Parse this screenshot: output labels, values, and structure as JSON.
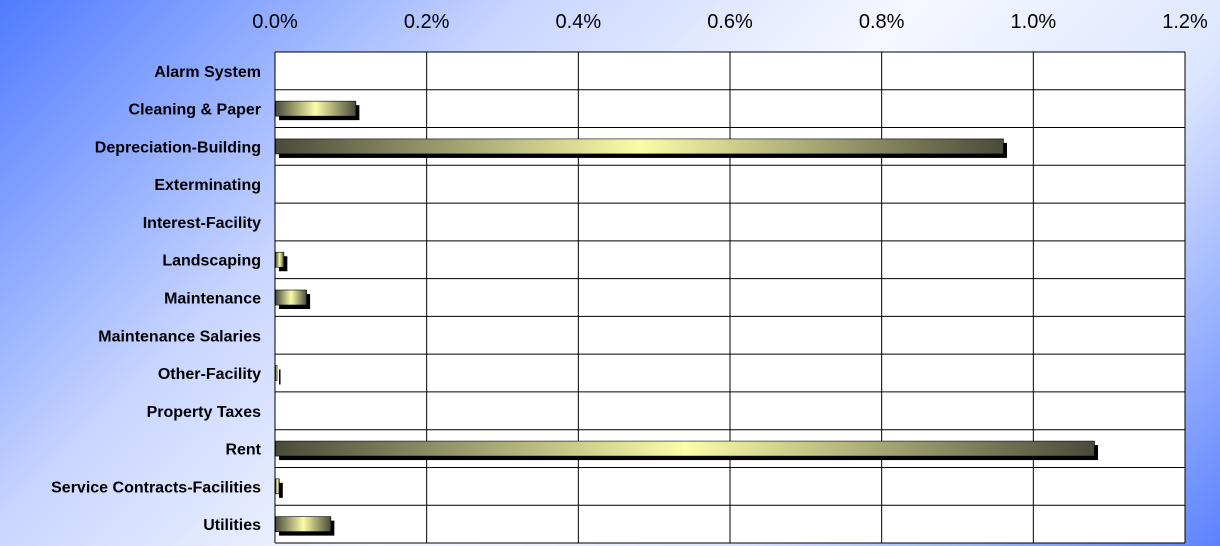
{
  "chart_data": {
    "type": "bar",
    "orientation": "horizontal",
    "categories": [
      "Alarm System",
      "Cleaning & Paper",
      "Depreciation-Building",
      "Exterminating",
      "Interest-Facility",
      "Landscaping",
      "Maintenance",
      "Maintenance Salaries",
      "Other-Facility",
      "Property Taxes",
      "Rent",
      "Service Contracts-Facilities",
      "Utilities"
    ],
    "values": [
      0.0,
      0.106,
      0.96,
      0.0,
      0.0,
      0.011,
      0.041,
      0.0,
      0.002,
      0.0,
      1.08,
      0.005,
      0.073
    ],
    "value_unit": "%",
    "xlim": [
      0,
      1.2
    ],
    "x_ticks": [
      "0.0%",
      "0.2%",
      "0.4%",
      "0.6%",
      "0.8%",
      "1.0%",
      "1.2%"
    ],
    "x_tick_values": [
      0,
      0.2,
      0.4,
      0.6,
      0.8,
      1.0,
      1.2
    ],
    "x_axis_position": "top",
    "grid": true,
    "title": "",
    "xlabel": "",
    "ylabel": "",
    "colors": {
      "bar_dark": "#4a4a3a",
      "bar_light": "#fbfca8",
      "bar_shadow": "#000000",
      "gridline": "#000000",
      "plot_background": "#ffffff"
    }
  }
}
